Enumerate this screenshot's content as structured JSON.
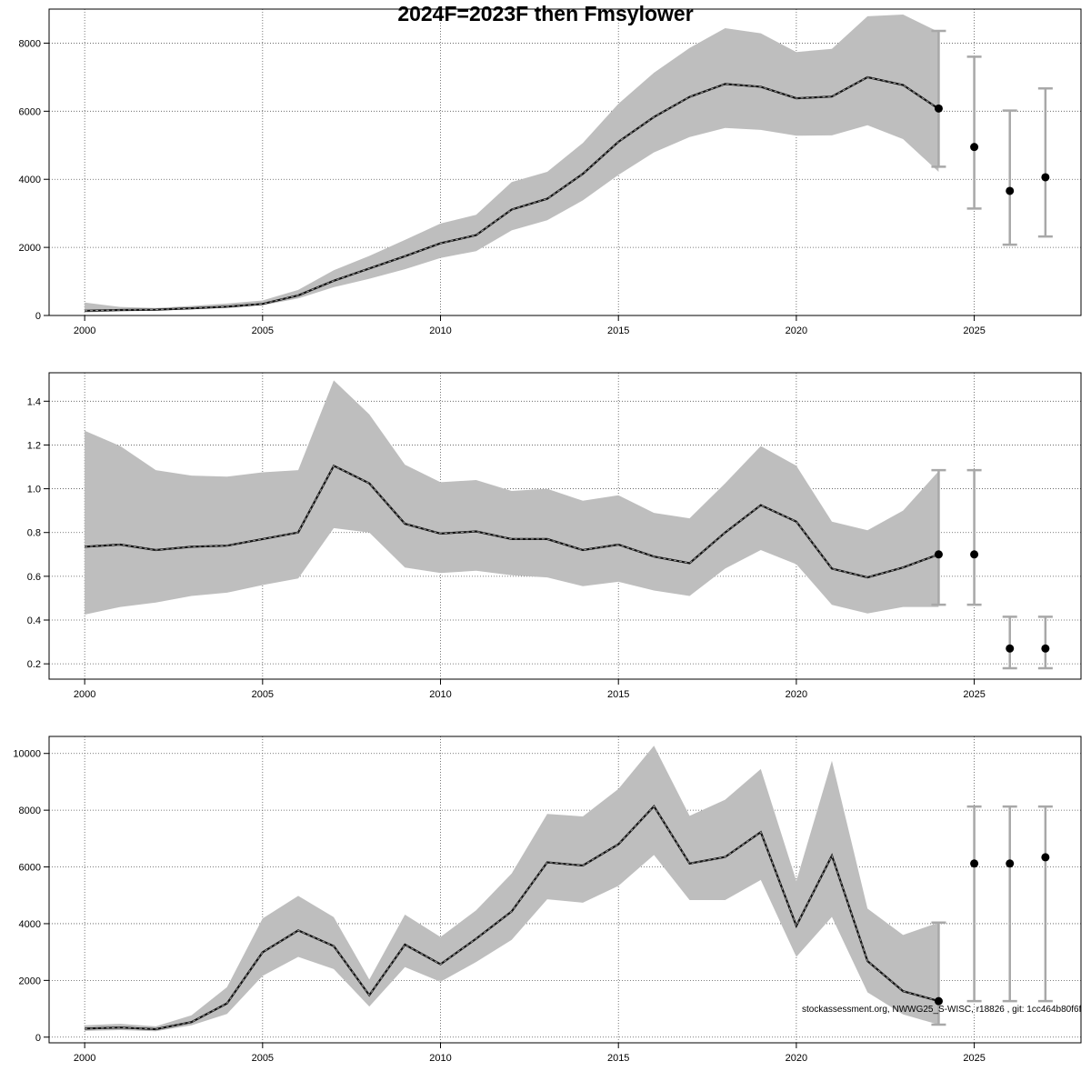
{
  "title": "2024F=2023F then Fmsylower",
  "footnote": "stockassessment.org, NWWG25_S-WISC, r18826 , git: 1cc464b80f6f",
  "chart_data": [
    {
      "type": "line",
      "xlabel": "",
      "ylabel": "",
      "xlim": [
        1999,
        2028
      ],
      "ylim": [
        0,
        9000
      ],
      "xticks": [
        2000,
        2005,
        2010,
        2015,
        2020,
        2025
      ],
      "yticks": [
        0,
        2000,
        4000,
        6000,
        8000
      ],
      "grid": true,
      "x": [
        2000,
        2001,
        2002,
        2003,
        2004,
        2005,
        2006,
        2007,
        2008,
        2009,
        2010,
        2011,
        2012,
        2013,
        2014,
        2015,
        2016,
        2017,
        2018,
        2019,
        2020,
        2021,
        2022,
        2023,
        2024
      ],
      "estimate": [
        140,
        160,
        170,
        210,
        260,
        340,
        590,
        1020,
        1380,
        1740,
        2120,
        2360,
        3110,
        3430,
        4160,
        5100,
        5830,
        6420,
        6800,
        6720,
        6380,
        6430,
        7000,
        6770,
        6070
      ],
      "lower": [
        90,
        120,
        140,
        180,
        220,
        300,
        500,
        830,
        1080,
        1360,
        1690,
        1890,
        2500,
        2800,
        3380,
        4130,
        4790,
        5240,
        5510,
        5450,
        5280,
        5290,
        5590,
        5180,
        4220
      ],
      "upper": [
        380,
        250,
        220,
        280,
        350,
        440,
        750,
        1330,
        1750,
        2220,
        2700,
        2960,
        3920,
        4220,
        5070,
        6220,
        7130,
        7860,
        8440,
        8290,
        7740,
        7830,
        8790,
        8840,
        8330
      ],
      "forecast": [
        {
          "x": 2024,
          "y": 6080,
          "low": 4370,
          "high": 8360
        },
        {
          "x": 2025,
          "y": 4950,
          "low": 3140,
          "high": 7600
        },
        {
          "x": 2026,
          "y": 3660,
          "low": 2080,
          "high": 6020
        },
        {
          "x": 2027,
          "y": 4060,
          "low": 2320,
          "high": 6670
        }
      ]
    },
    {
      "type": "line",
      "xlabel": "",
      "ylabel": "",
      "xlim": [
        1999,
        2028
      ],
      "ylim": [
        0.13,
        1.53
      ],
      "xticks": [
        2000,
        2005,
        2010,
        2015,
        2020,
        2025
      ],
      "yticks": [
        0.2,
        0.4,
        0.6,
        0.8,
        1.0,
        1.2,
        1.4
      ],
      "ytick_labels": [
        "0.2",
        "0.4",
        "0.6",
        "0.8",
        "1.0",
        "1.2",
        "1.4"
      ],
      "grid": true,
      "x": [
        2000,
        2001,
        2002,
        2003,
        2004,
        2005,
        2006,
        2007,
        2008,
        2009,
        2010,
        2011,
        2012,
        2013,
        2014,
        2015,
        2016,
        2017,
        2018,
        2019,
        2020,
        2021,
        2022,
        2023,
        2024
      ],
      "estimate": [
        0.735,
        0.745,
        0.72,
        0.735,
        0.74,
        0.77,
        0.8,
        1.105,
        1.025,
        0.84,
        0.795,
        0.805,
        0.77,
        0.77,
        0.72,
        0.745,
        0.69,
        0.66,
        0.8,
        0.925,
        0.85,
        0.635,
        0.595,
        0.64,
        0.7
      ],
      "lower": [
        0.425,
        0.46,
        0.48,
        0.51,
        0.525,
        0.56,
        0.59,
        0.82,
        0.8,
        0.64,
        0.615,
        0.625,
        0.605,
        0.595,
        0.555,
        0.575,
        0.535,
        0.51,
        0.635,
        0.72,
        0.655,
        0.47,
        0.43,
        0.46,
        0.46
      ],
      "upper": [
        1.265,
        1.195,
        1.085,
        1.06,
        1.055,
        1.075,
        1.085,
        1.495,
        1.34,
        1.11,
        1.03,
        1.04,
        0.99,
        1.0,
        0.945,
        0.97,
        0.89,
        0.865,
        1.025,
        1.195,
        1.105,
        0.85,
        0.81,
        0.9,
        1.08
      ],
      "forecast": [
        {
          "x": 2024,
          "y": 0.7,
          "low": 0.47,
          "high": 1.085
        },
        {
          "x": 2025,
          "y": 0.7,
          "low": 0.47,
          "high": 1.085
        },
        {
          "x": 2026,
          "y": 0.27,
          "low": 0.18,
          "high": 0.415
        },
        {
          "x": 2027,
          "y": 0.27,
          "low": 0.18,
          "high": 0.415
        }
      ]
    },
    {
      "type": "line",
      "xlabel": "",
      "ylabel": "",
      "xlim": [
        1999,
        2028
      ],
      "ylim": [
        -200,
        10600
      ],
      "xticks": [
        2000,
        2005,
        2010,
        2015,
        2020,
        2025
      ],
      "yticks": [
        0,
        2000,
        4000,
        6000,
        8000,
        10000
      ],
      "grid": true,
      "x": [
        2000,
        2001,
        2002,
        2003,
        2004,
        2005,
        2006,
        2007,
        2008,
        2009,
        2010,
        2011,
        2012,
        2013,
        2014,
        2015,
        2016,
        2017,
        2018,
        2019,
        2020,
        2021,
        2022,
        2023,
        2024
      ],
      "estimate": [
        300,
        340,
        280,
        530,
        1190,
        2990,
        3760,
        3210,
        1480,
        3260,
        2570,
        3470,
        4430,
        6160,
        6050,
        6800,
        8140,
        6120,
        6350,
        7230,
        3920,
        6400,
        2680,
        1620,
        1270
      ],
      "lower": [
        220,
        250,
        210,
        420,
        820,
        2160,
        2830,
        2400,
        1080,
        2470,
        1950,
        2650,
        3430,
        4860,
        4740,
        5330,
        6420,
        4830,
        4830,
        5540,
        2830,
        4240,
        1580,
        800,
        440
      ],
      "upper": [
        420,
        470,
        380,
        770,
        1760,
        4180,
        4980,
        4230,
        2030,
        4320,
        3530,
        4470,
        5770,
        7870,
        7780,
        8750,
        10270,
        7800,
        8370,
        9450,
        5500,
        9740,
        4530,
        3600,
        4040
      ],
      "forecast": [
        {
          "x": 2024,
          "y": 1270,
          "low": 440,
          "high": 4040
        },
        {
          "x": 2025,
          "y": 6120,
          "low": 1270,
          "high": 8130
        },
        {
          "x": 2026,
          "y": 6120,
          "low": 1270,
          "high": 8130
        },
        {
          "x": 2027,
          "y": 6340,
          "low": 1270,
          "high": 8130
        }
      ]
    }
  ]
}
